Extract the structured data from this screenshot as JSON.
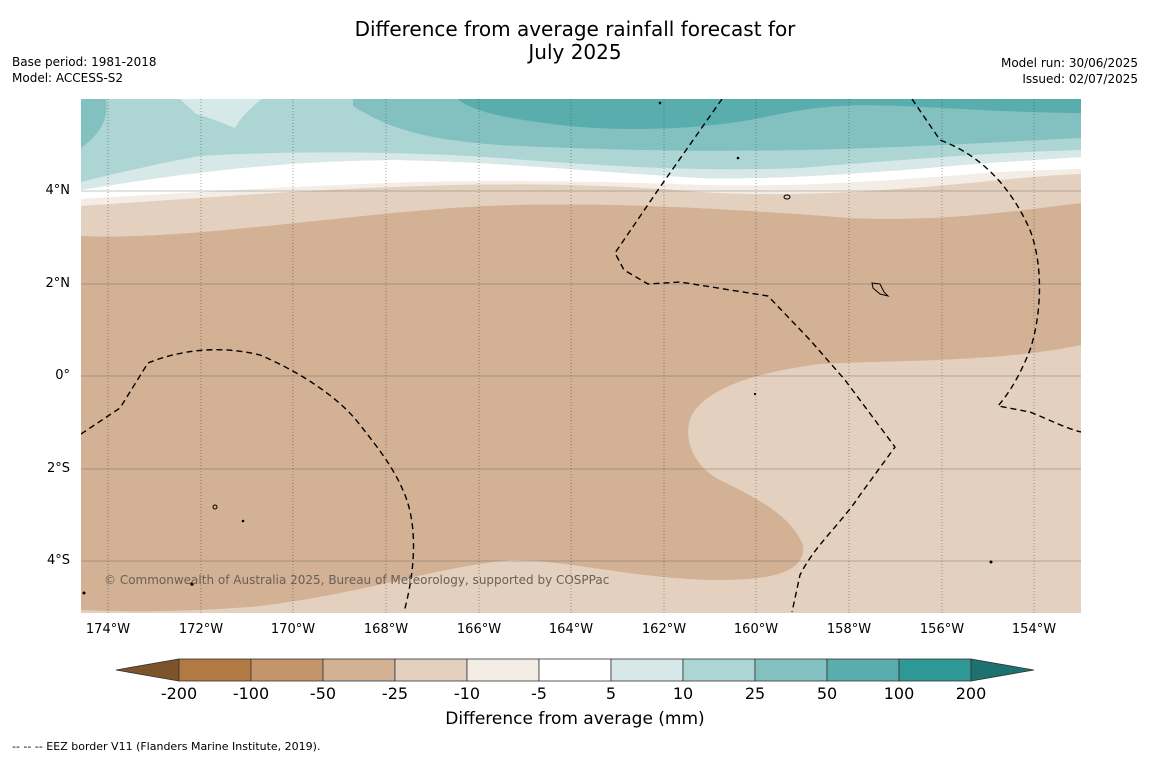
{
  "title": {
    "line1": "Difference from average rainfall forecast for",
    "line2": "July 2025"
  },
  "meta_left": {
    "base_period": "Base period: 1981-2018",
    "model": "Model: ACCESS-S2"
  },
  "meta_right": {
    "model_run": "Model run: 30/06/2025",
    "issued": "Issued: 02/07/2025"
  },
  "map": {
    "lat_labels": [
      "4°N",
      "2°N",
      "0°",
      "2°S",
      "4°S"
    ],
    "lon_labels": [
      "174°W",
      "172°W",
      "170°W",
      "168°W",
      "166°W",
      "164°W",
      "162°W",
      "160°W",
      "158°W",
      "156°W",
      "154°W"
    ],
    "copyright": "© Commonwealth of Australia 2025, Bureau of Meteorology, supported by COSPPac",
    "colors": {
      "minus_50": "#d2b194",
      "minus_25": "#e3d0bf",
      "minus_10": "#f3ede6",
      "zero": "#ffffff",
      "plus_10": "#d6e9e8",
      "plus_25": "#acd5d4",
      "plus_50": "#82c1c0",
      "plus_100": "#5aadad"
    }
  },
  "colorbar": {
    "title": "Difference from average (mm)",
    "tick_labels": [
      "-200",
      "-100",
      "-50",
      "-25",
      "-10",
      "-5",
      "5",
      "10",
      "25",
      "50",
      "100",
      "200"
    ],
    "colors": [
      "#7d532a",
      "#b07a42",
      "#c4956a",
      "#d2b194",
      "#e3d0bf",
      "#f3ede6",
      "#ffffff",
      "#d6e9e8",
      "#acd5d4",
      "#82c1c0",
      "#5aadad",
      "#2e9896",
      "#1d7170"
    ]
  },
  "footer": {
    "eez_note": "--  --  -- EEZ border V11 (Flanders Marine Institute, 2019)."
  }
}
